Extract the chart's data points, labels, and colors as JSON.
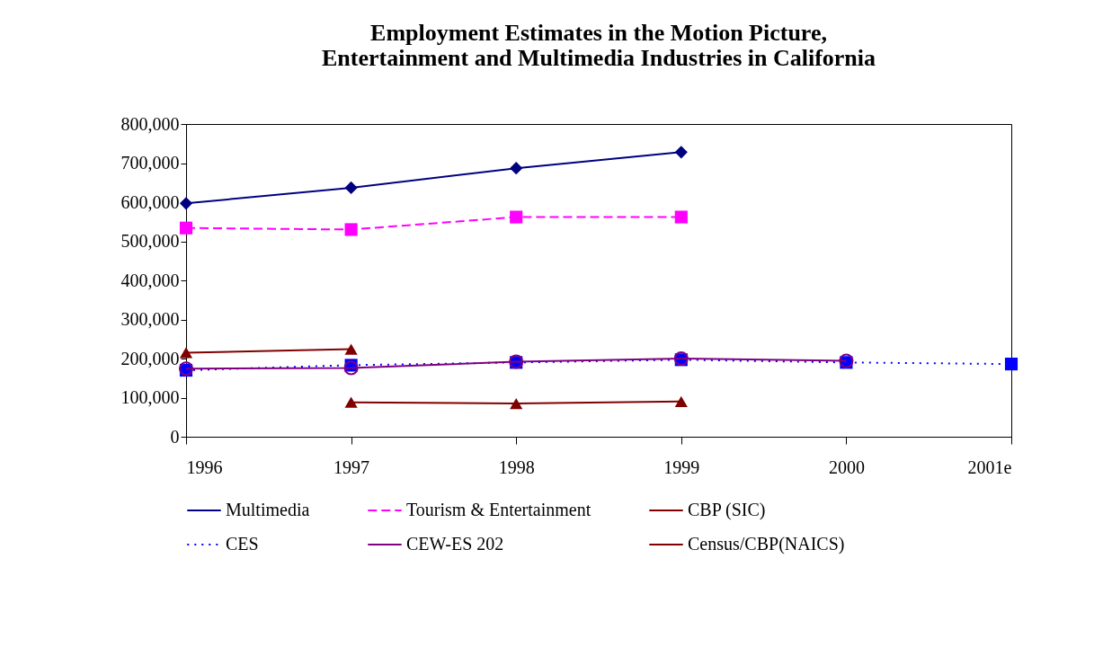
{
  "chart_data": {
    "type": "line",
    "title": "Employment Estimates in the Motion Picture,\nEntertainment and Multimedia Industries in California",
    "categories": [
      "1996",
      "1997",
      "1998",
      "1999",
      "2000",
      "2001e"
    ],
    "ylim": [
      0,
      800000
    ],
    "yticks": [
      0,
      {
        "value": 100000,
        "label": "100,000"
      },
      {
        "value": 200000,
        "label": "200,000"
      },
      {
        "value": 300000,
        "label": "300,000"
      },
      {
        "value": 400000,
        "label": "400,000"
      },
      {
        "value": 500000,
        "label": "500,000"
      },
      {
        "value": 600000,
        "label": "600,000"
      },
      {
        "value": 700000,
        "label": "700,000"
      },
      {
        "value": 800000,
        "label": "800,000"
      }
    ],
    "grid": false,
    "legend": "bottom",
    "series": [
      {
        "name": "Multimedia",
        "color": "#000080",
        "marker": "diamond",
        "line_style": "solid",
        "values": [
          597000,
          637000,
          687000,
          728000,
          null,
          null
        ]
      },
      {
        "name": "Tourism & Entertainment",
        "color": "#ff00ff",
        "marker": "square",
        "line_style": "dashed",
        "values": [
          534000,
          530000,
          562000,
          562000,
          null,
          null
        ]
      },
      {
        "name": "CBP (SIC)",
        "color": "#800000",
        "marker": "triangle",
        "line_style": "solid",
        "values": [
          215000,
          224000,
          null,
          null,
          null,
          null
        ]
      },
      {
        "name": "CES",
        "color": "#0000ff",
        "marker": "square",
        "line_style": "dotted",
        "values": [
          170000,
          183000,
          190000,
          197000,
          190000,
          186000
        ]
      },
      {
        "name": "CEW-ES 202",
        "color": "#800080",
        "marker": "circle",
        "line_style": "solid",
        "values": [
          174000,
          176000,
          192000,
          200000,
          194000,
          null
        ]
      },
      {
        "name": "Census/CBP(NAICS)",
        "color": "#800000",
        "marker": "triangle",
        "line_style": "solid",
        "values": [
          null,
          88000,
          85000,
          90000,
          null,
          null
        ]
      }
    ]
  }
}
